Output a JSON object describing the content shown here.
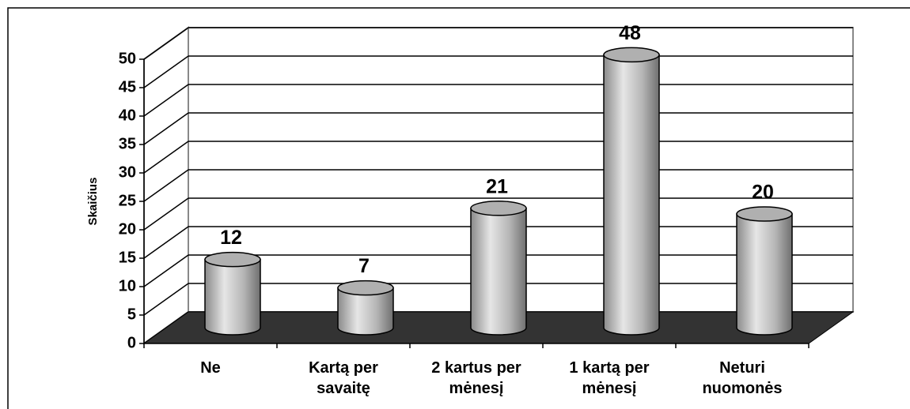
{
  "chart_data": {
    "type": "bar",
    "y_label": "Skaičius",
    "categories": [
      "Ne",
      "Kartą per savaitę",
      "2 kartus per mėnesį",
      "1 kartą per mėnesį",
      "Neturi nuomonės"
    ],
    "values": [
      12,
      7,
      21,
      48,
      20
    ],
    "ylim": [
      0,
      50
    ],
    "yticks": [
      0,
      5,
      10,
      15,
      20,
      25,
      30,
      35,
      40,
      45,
      50
    ],
    "grid": true,
    "color": "#b0b0b0"
  }
}
